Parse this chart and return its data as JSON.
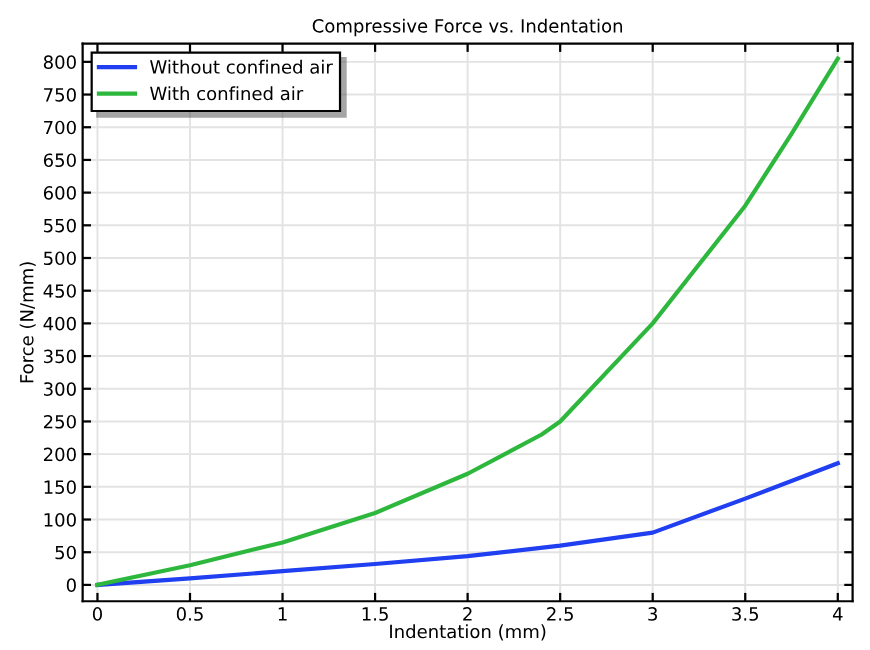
{
  "chart_data": {
    "type": "line",
    "title": "Compressive Force vs. Indentation",
    "xlabel": "Indentation (mm)",
    "ylabel": "Force (N/mm)",
    "series": [
      {
        "name": "Without confined air",
        "color": "#1f3ff0",
        "x": [
          0,
          0.5,
          1,
          1.5,
          2,
          2.5,
          3,
          3.5,
          4
        ],
        "values": [
          0,
          10,
          21,
          32,
          44,
          60,
          80,
          132,
          186
        ]
      },
      {
        "name": "With confined air",
        "color": "#2db83d",
        "x": [
          0,
          0.5,
          1,
          1.5,
          2,
          2.4,
          2.5,
          3,
          3.25,
          3.5,
          3.75,
          4
        ],
        "values": [
          0,
          30,
          65,
          110,
          170,
          230,
          250,
          400,
          490,
          580,
          690,
          805
        ]
      }
    ],
    "xlim": [
      -0.08,
      4.08
    ],
    "ylim": [
      -25,
      828
    ],
    "xticks": [
      0,
      0.5,
      1,
      1.5,
      2,
      2.5,
      3,
      3.5,
      4
    ],
    "yticks": [
      0,
      50,
      100,
      150,
      200,
      250,
      300,
      350,
      400,
      450,
      500,
      550,
      600,
      650,
      700,
      750,
      800
    ],
    "grid": true,
    "legend": "top left",
    "marker": "none",
    "line_style": "solid"
  }
}
